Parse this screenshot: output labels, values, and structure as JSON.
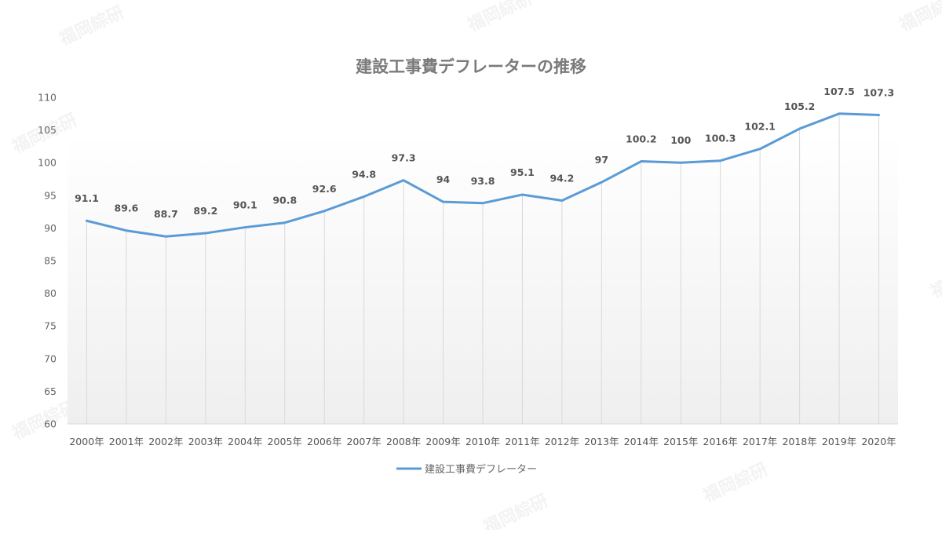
{
  "chart_data": {
    "type": "line",
    "title": "建設工事費デフレーターの推移",
    "xlabel": "",
    "ylabel": "",
    "categories": [
      "2000年",
      "2001年",
      "2002年",
      "2003年",
      "2004年",
      "2005年",
      "2006年",
      "2007年",
      "2008年",
      "2009年",
      "2010年",
      "2011年",
      "2012年",
      "2013年",
      "2014年",
      "2015年",
      "2016年",
      "2017年",
      "2018年",
      "2019年",
      "2020年"
    ],
    "series": [
      {
        "name": "建設工事費デフレーター",
        "color": "#5b9bd5",
        "values": [
          91.1,
          89.6,
          88.7,
          89.2,
          90.1,
          90.8,
          92.6,
          94.8,
          97.3,
          94,
          93.8,
          95.1,
          94.2,
          97,
          100.2,
          100,
          100.3,
          102.1,
          105.2,
          107.5,
          107.3
        ],
        "labels": [
          "91.1",
          "89.6",
          "88.7",
          "89.2",
          "90.1",
          "90.8",
          "92.6",
          "94.8",
          "97.3",
          "94",
          "93.8",
          "95.1",
          "94.2",
          "97",
          "100.2",
          "100",
          "100.3",
          "102.1",
          "105.2",
          "107.5",
          "107.3"
        ]
      }
    ],
    "ylim": [
      60,
      110
    ],
    "yticks": [
      60,
      65,
      70,
      75,
      80,
      85,
      90,
      95,
      100,
      105,
      110
    ],
    "grid": "vertical drop lines per category",
    "legend_position": "bottom",
    "data_labels": true
  },
  "watermark": "福岡綜研"
}
